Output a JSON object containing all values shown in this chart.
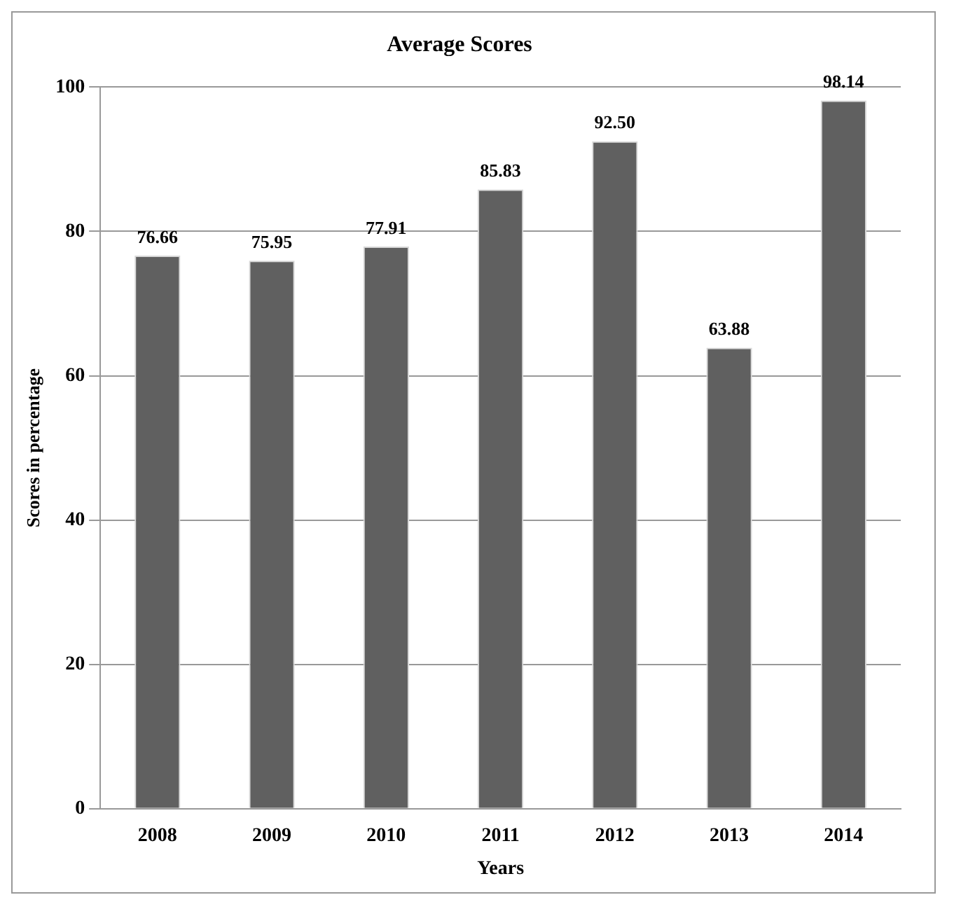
{
  "chart_data": {
    "type": "bar",
    "title": "Average Scores",
    "xlabel": "Years",
    "ylabel": "Scores in percentage",
    "categories": [
      "2008",
      "2009",
      "2010",
      "2011",
      "2012",
      "2013",
      "2014"
    ],
    "values": [
      76.66,
      75.95,
      77.91,
      85.83,
      92.5,
      63.88,
      98.14
    ],
    "value_labels": [
      "76.66",
      "75.95",
      "77.91",
      "85.83",
      "92.50",
      "63.88",
      "98.14"
    ],
    "color": "#606060",
    "ylim": [
      0,
      100
    ],
    "yticks": [
      0,
      20,
      40,
      60,
      80,
      100
    ],
    "grid": "y",
    "legend": false
  }
}
